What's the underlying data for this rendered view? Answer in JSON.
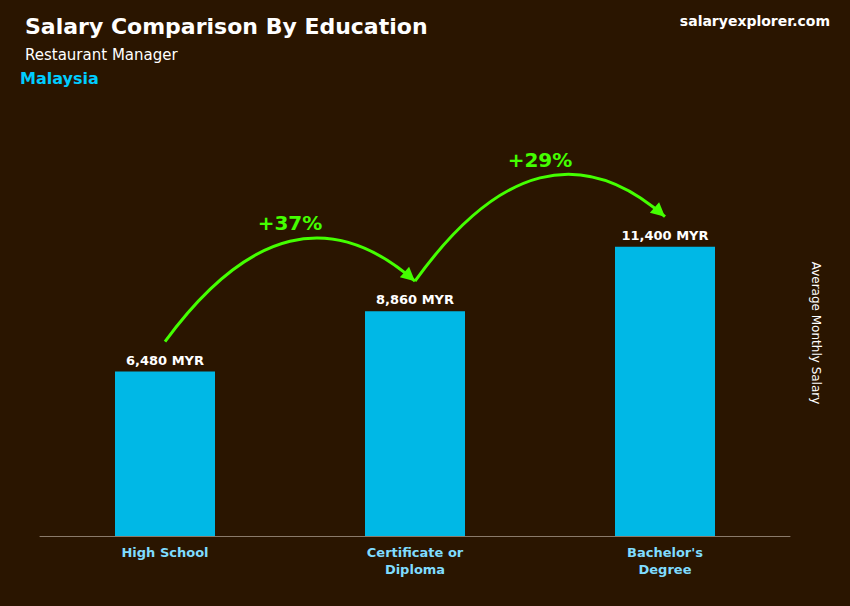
{
  "chart_data": {
    "type": "bar",
    "title": "Salary Comparison By Education",
    "subtitle": "Restaurant Manager",
    "annotations": [
      "Malaysia",
      "salaryexplorer.com"
    ],
    "ylabel": "Average Monthly Salary",
    "categories": [
      "High School",
      "Certificate or\nDiploma",
      "Bachelor's\nDegree"
    ],
    "values": [
      6480,
      8860,
      11400
    ],
    "value_labels": [
      "6,480 MYR",
      "8,860 MYR",
      "11,400 MYR"
    ],
    "data_labels": true,
    "color": "#00b8e6",
    "arrows": [
      {
        "from": "High School",
        "to": "Certificate or\nDiploma",
        "label": "+37%",
        "color": "#44ff00"
      },
      {
        "from": "Certificate or\nDiploma",
        "to": "Bachelor's\nDegree",
        "label": "+29%",
        "color": "#44ff00"
      }
    ],
    "ylim": [
      0,
      16000
    ],
    "tick_labels": "x",
    "grid": false
  }
}
